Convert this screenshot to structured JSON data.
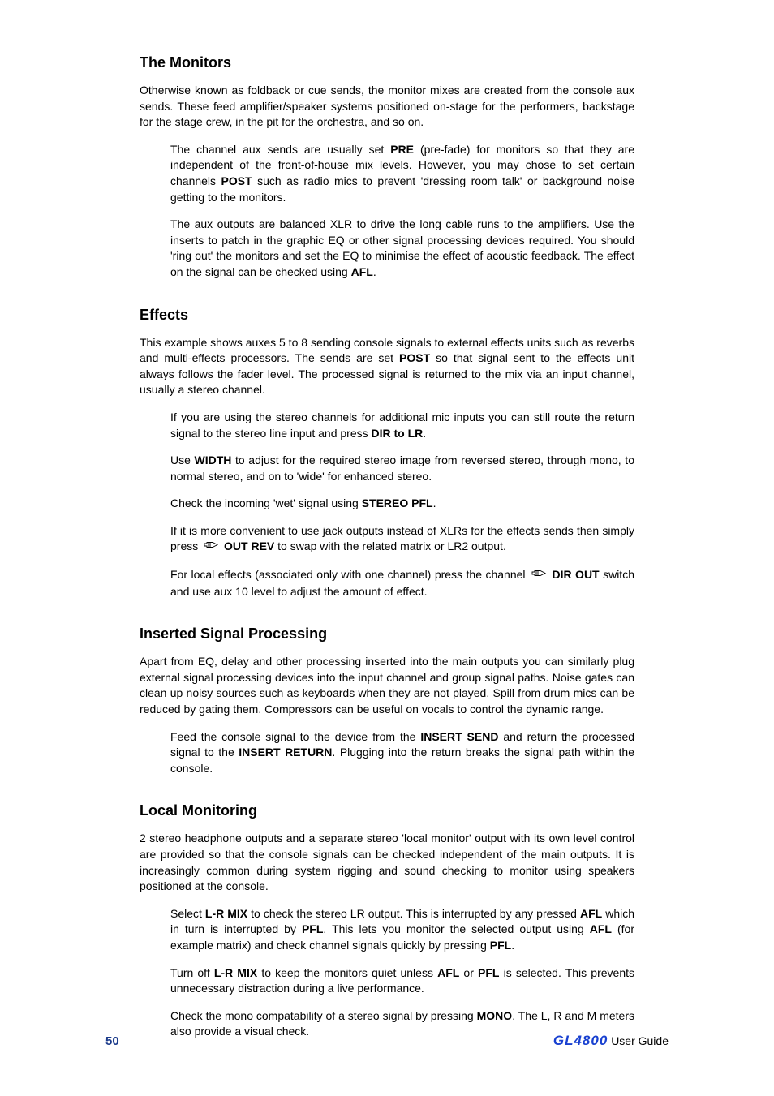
{
  "page": {
    "number": "50",
    "brand": "GL4800",
    "guide_label": "User Guide"
  },
  "colors": {
    "page_number": "#1a3a8a",
    "brand": "#1840d0",
    "text": "#000000",
    "background": "#ffffff"
  },
  "typography": {
    "heading_fontsize_pt": 14,
    "body_fontsize_pt": 10.5,
    "font_family": "Arial"
  },
  "sections": [
    {
      "heading": "The Monitors",
      "body": [
        "Otherwise known as foldback or cue sends, the monitor mixes are created from the console aux sends.  These feed amplifier/speaker systems positioned on-stage for the performers, backstage for the stage crew, in the pit for the orchestra, and so on."
      ],
      "indented": [
        {
          "runs": [
            {
              "t": "The channel aux sends are usually set "
            },
            {
              "t": "PRE",
              "b": true
            },
            {
              "t": " (pre-fade) for monitors so that they are independent of the front-of-house mix levels.  However, you may chose to set certain channels "
            },
            {
              "t": "POST",
              "b": true
            },
            {
              "t": " such as radio mics to prevent 'dressing room talk' or background noise getting to the monitors."
            }
          ]
        },
        {
          "runs": [
            {
              "t": "The aux outputs are balanced XLR to drive the long cable runs to the amplifiers.  Use the inserts to patch in the graphic EQ or other signal processing devices required.  You should 'ring out' the monitors and set the EQ to minimise the effect of acoustic feedback.  The effect on the signal can be checked using "
            },
            {
              "t": "AFL",
              "b": true
            },
            {
              "t": "."
            }
          ]
        }
      ]
    },
    {
      "heading": "Effects",
      "body": [
        {
          "runs": [
            {
              "t": "This example shows auxes 5 to 8 sending console signals to external effects units such as reverbs and multi-effects processors.  The sends are set "
            },
            {
              "t": "POST",
              "b": true
            },
            {
              "t": " so that signal sent to the effects unit always follows the fader level.  The processed signal is returned to the mix via an input channel, usually a stereo channel."
            }
          ]
        }
      ],
      "indented": [
        {
          "runs": [
            {
              "t": "If you are using the stereo channels for additional mic inputs you can still route the return signal to the stereo line input and press "
            },
            {
              "t": "DIR to LR",
              "b": true
            },
            {
              "t": "."
            }
          ]
        },
        {
          "runs": [
            {
              "t": "Use "
            },
            {
              "t": "WIDTH",
              "b": true
            },
            {
              "t": " to adjust for the required stereo image from reversed stereo, through mono, to normal stereo, and on to 'wide' for enhanced stereo."
            }
          ]
        },
        {
          "runs": [
            {
              "t": "Check the incoming 'wet' signal using "
            },
            {
              "t": "STEREO PFL",
              "b": true
            },
            {
              "t": "."
            }
          ]
        },
        {
          "runs": [
            {
              "t": "If it is more convenient to use jack outputs instead of XLRs for the effects sends then simply press "
            },
            {
              "icon": "hand"
            },
            {
              "t": " "
            },
            {
              "t": "OUT REV",
              "b": true
            },
            {
              "t": " to swap with the related matrix or LR2 output."
            }
          ]
        },
        {
          "runs": [
            {
              "t": "For local effects (associated only with one channel) press the channel "
            },
            {
              "icon": "hand"
            },
            {
              "t": " "
            },
            {
              "t": "DIR OUT",
              "b": true
            },
            {
              "t": " switch and use aux 10 level to adjust the amount of effect."
            }
          ]
        }
      ]
    },
    {
      "heading": "Inserted Signal Processing",
      "body": [
        "Apart from EQ, delay and other processing inserted into the main outputs you can similarly plug external signal processing devices into the input channel and group signal paths.  Noise gates can clean up noisy sources such as keyboards when they are not played.  Spill from drum mics can be reduced by gating them.  Compressors can be useful on vocals to control the dynamic range."
      ],
      "indented": [
        {
          "runs": [
            {
              "t": "Feed the console signal to the device from the "
            },
            {
              "t": "INSERT SEND",
              "b": true
            },
            {
              "t": " and return the processed signal to the "
            },
            {
              "t": "INSERT RETURN",
              "b": true
            },
            {
              "t": ". Plugging into the return breaks the signal path within the console."
            }
          ]
        }
      ]
    },
    {
      "heading": "Local Monitoring",
      "body": [
        "2 stereo headphone outputs and a separate stereo 'local monitor' output with its own level control are provided so that the console signals can be checked independent of the main outputs.  It is increasingly common during system rigging and sound checking to monitor using speakers positioned at the console."
      ],
      "indented": [
        {
          "runs": [
            {
              "t": "Select "
            },
            {
              "t": "L-R MIX",
              "b": true
            },
            {
              "t": " to check the stereo LR output.  This is interrupted by any pressed "
            },
            {
              "t": "AFL",
              "b": true
            },
            {
              "t": " which in turn is interrupted by "
            },
            {
              "t": "PFL",
              "b": true
            },
            {
              "t": ".  This lets you monitor the selected output using "
            },
            {
              "t": "AFL",
              "b": true
            },
            {
              "t": " (for example matrix) and check channel signals quickly by pressing "
            },
            {
              "t": "PFL",
              "b": true
            },
            {
              "t": "."
            }
          ]
        },
        {
          "runs": [
            {
              "t": "Turn off "
            },
            {
              "t": "L-R MIX",
              "b": true
            },
            {
              "t": " to keep the monitors quiet unless "
            },
            {
              "t": "AFL",
              "b": true
            },
            {
              "t": " or "
            },
            {
              "t": "PFL",
              "b": true
            },
            {
              "t": " is selected.  This prevents unnecessary distraction during a live performance."
            }
          ]
        },
        {
          "runs": [
            {
              "t": "Check the mono compatability of a stereo signal by pressing "
            },
            {
              "t": "MONO",
              "b": true
            },
            {
              "t": ".  The L, R and M meters also provide a visual check."
            }
          ]
        }
      ]
    }
  ]
}
